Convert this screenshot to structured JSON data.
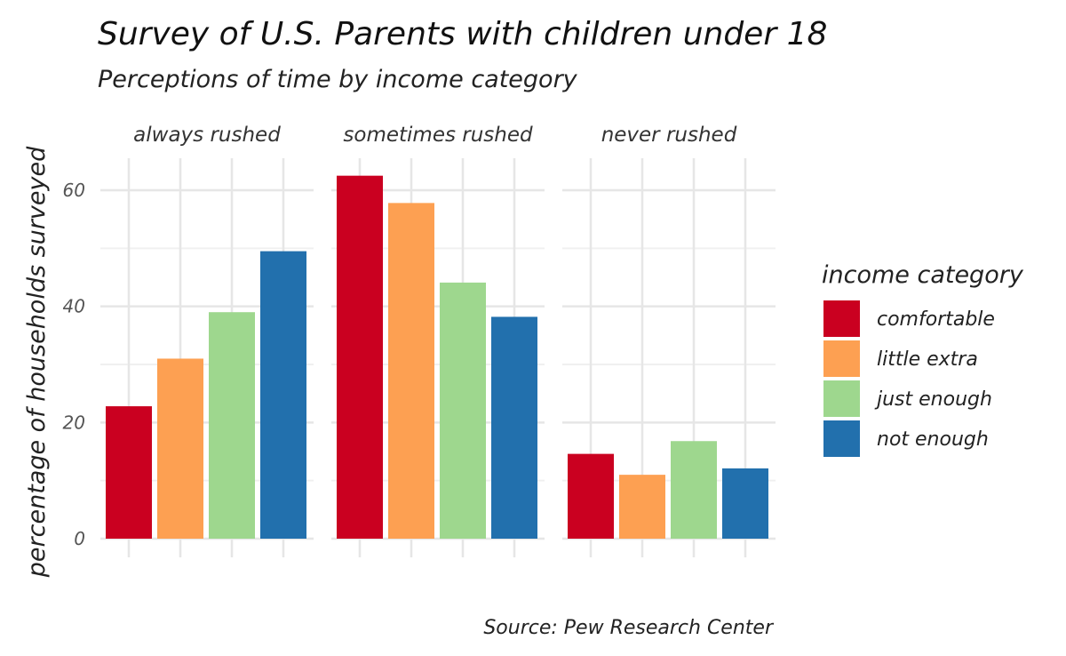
{
  "chart_data": {
    "type": "bar",
    "title": "Survey of U.S. Parents with children under 18",
    "subtitle": "Perceptions of time by income category",
    "ylabel": "percentage of households surveyed",
    "xlabel": "",
    "caption": "Source: Pew Research Center",
    "ylim": [
      0,
      65
    ],
    "yticks": [
      0,
      20,
      40,
      60
    ],
    "grid": true,
    "legend": {
      "title": "income category",
      "placement": "right"
    },
    "panels": [
      "always rushed",
      "sometimes rushed",
      "never rushed"
    ],
    "categories": [
      "comfortable",
      "little extra",
      "just enough",
      "not enough"
    ],
    "colors": [
      "#ca0020",
      "#fda052",
      "#9ed78e",
      "#2270ad"
    ],
    "series": [
      {
        "panel": "always rushed",
        "values": [
          22.8,
          31,
          39,
          49.5
        ]
      },
      {
        "panel": "sometimes rushed",
        "values": [
          62.5,
          57.8,
          44.1,
          38.2
        ]
      },
      {
        "panel": "never rushed",
        "values": [
          14.6,
          11,
          16.8,
          12.1
        ]
      }
    ]
  }
}
